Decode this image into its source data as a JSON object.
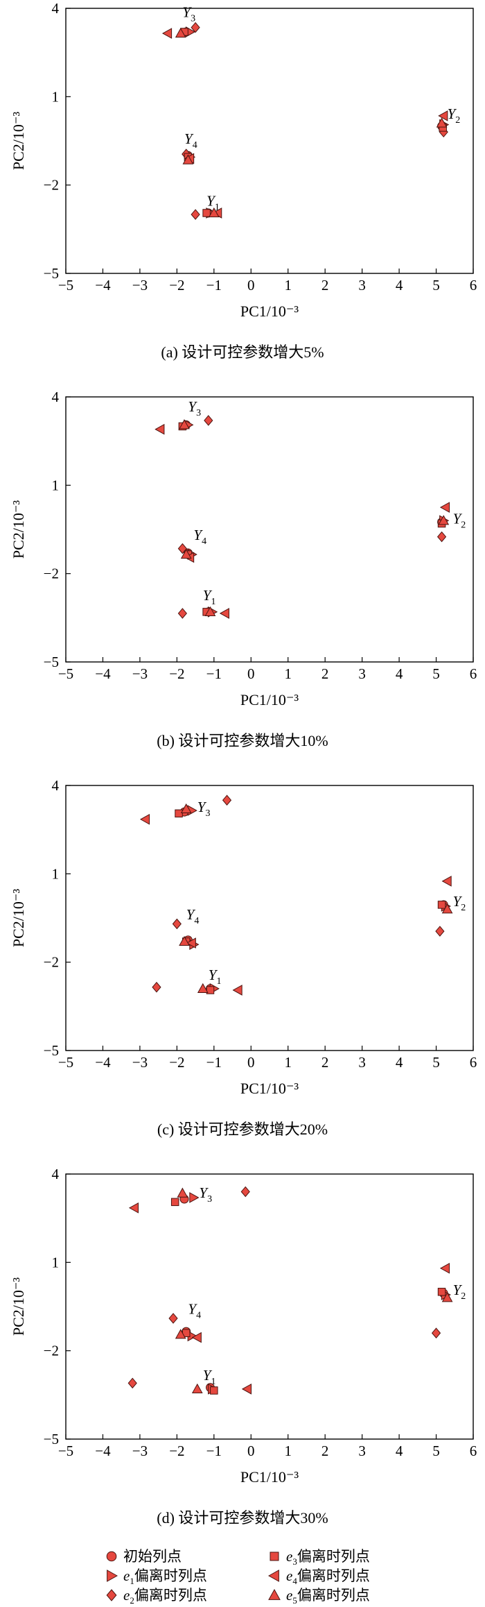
{
  "colors": {
    "marker_fill": "#e5483f",
    "marker_edge": "#4a1410",
    "axis": "#000000"
  },
  "series_markers": {
    "initial": "circle",
    "e1": "triangle-right",
    "e2": "diamond",
    "e3": "square",
    "e4": "triangle-left",
    "e5": "triangle-up"
  },
  "legend": [
    {
      "key": "initial",
      "base": "",
      "sub": "",
      "text": "初始列点"
    },
    {
      "key": "e3",
      "base": "e",
      "sub": "3",
      "text": "偏离时列点"
    },
    {
      "key": "e1",
      "base": "e",
      "sub": "1",
      "text": "偏离时列点"
    },
    {
      "key": "e4",
      "base": "e",
      "sub": "4",
      "text": "偏离时列点"
    },
    {
      "key": "e2",
      "base": "e",
      "sub": "2",
      "text": "偏离时列点"
    },
    {
      "key": "e5",
      "base": "e",
      "sub": "5",
      "text": "偏离时列点"
    }
  ],
  "chart_data": [
    {
      "type": "scatter",
      "caption": "(a) 设计可控参数增大5%",
      "xlabel": "PC1/10⁻³",
      "ylabel": "PC2/10⁻³",
      "xlim": [
        -5,
        6
      ],
      "ylim": [
        -5,
        4
      ],
      "xticks": [
        "−5",
        "−4",
        "−3",
        "−2",
        "−1",
        "0",
        "1",
        "2",
        "3",
        "4",
        "5",
        "6"
      ],
      "yticks": [
        "4",
        "1",
        "−2",
        "−5"
      ],
      "point_labels": [
        {
          "base": "Y",
          "sub": "1",
          "x": -1.2,
          "y": -2.7
        },
        {
          "base": "Y",
          "sub": "2",
          "x": 5.3,
          "y": 0.25
        },
        {
          "base": "Y",
          "sub": "3",
          "x": -1.85,
          "y": 3.7
        },
        {
          "base": "Y",
          "sub": "4",
          "x": -1.8,
          "y": -0.6
        }
      ],
      "series": [
        {
          "key": "initial",
          "points": [
            [
              -1.75,
              3.2
            ],
            [
              5.15,
              0.0
            ],
            [
              -1.7,
              -1.0
            ],
            [
              -1.15,
              -2.95
            ]
          ]
        },
        {
          "key": "e1",
          "points": [
            [
              -1.65,
              3.2
            ],
            [
              5.2,
              0.05
            ],
            [
              -1.65,
              -1.05
            ],
            [
              -1.1,
              -2.95
            ]
          ]
        },
        {
          "key": "e2",
          "points": [
            [
              -1.5,
              3.35
            ],
            [
              5.2,
              -0.2
            ],
            [
              -1.75,
              -0.95
            ],
            [
              -1.5,
              -3.0
            ]
          ]
        },
        {
          "key": "e3",
          "points": [
            [
              -1.8,
              3.2
            ],
            [
              5.18,
              -0.05
            ],
            [
              -1.7,
              -1.05
            ],
            [
              -1.2,
              -2.95
            ]
          ]
        },
        {
          "key": "e4",
          "points": [
            [
              -2.25,
              3.15
            ],
            [
              5.2,
              0.35
            ],
            [
              -1.65,
              -1.1
            ],
            [
              -0.9,
              -2.95
            ]
          ]
        },
        {
          "key": "e5",
          "points": [
            [
              -1.9,
              3.15
            ],
            [
              5.15,
              0.1
            ],
            [
              -1.7,
              -1.15
            ],
            [
              -1.0,
              -2.95
            ]
          ]
        }
      ]
    },
    {
      "type": "scatter",
      "caption": "(b) 设计可控参数增大10%",
      "xlabel": "PC1/10⁻³",
      "ylabel": "PC2/10⁻³",
      "xlim": [
        -5,
        6
      ],
      "ylim": [
        -5,
        4
      ],
      "xticks": [
        "−5",
        "−4",
        "−3",
        "−2",
        "−1",
        "0",
        "1",
        "2",
        "3",
        "4",
        "5",
        "6"
      ],
      "yticks": [
        "4",
        "1",
        "−2",
        "−5"
      ],
      "point_labels": [
        {
          "base": "Y",
          "sub": "1",
          "x": -1.3,
          "y": -2.9
        },
        {
          "base": "Y",
          "sub": "2",
          "x": 5.45,
          "y": -0.3
        },
        {
          "base": "Y",
          "sub": "3",
          "x": -1.7,
          "y": 3.5
        },
        {
          "base": "Y",
          "sub": "4",
          "x": -1.55,
          "y": -0.85
        }
      ],
      "series": [
        {
          "key": "initial",
          "points": [
            [
              -1.75,
              3.05
            ],
            [
              5.15,
              -0.25
            ],
            [
              -1.7,
              -1.3
            ],
            [
              -1.15,
              -3.3
            ]
          ]
        },
        {
          "key": "e1",
          "points": [
            [
              -1.7,
              3.05
            ],
            [
              5.2,
              -0.2
            ],
            [
              -1.6,
              -1.35
            ],
            [
              -1.05,
              -3.3
            ]
          ]
        },
        {
          "key": "e2",
          "points": [
            [
              -1.15,
              3.2
            ],
            [
              5.15,
              -0.75
            ],
            [
              -1.85,
              -1.15
            ],
            [
              -1.85,
              -3.35
            ]
          ]
        },
        {
          "key": "e3",
          "points": [
            [
              -1.85,
              3.0
            ],
            [
              5.15,
              -0.3
            ],
            [
              -1.7,
              -1.35
            ],
            [
              -1.2,
              -3.3
            ]
          ]
        },
        {
          "key": "e4",
          "points": [
            [
              -2.45,
              2.9
            ],
            [
              5.25,
              0.25
            ],
            [
              -1.65,
              -1.45
            ],
            [
              -0.7,
              -3.35
            ]
          ]
        },
        {
          "key": "e5",
          "points": [
            [
              -1.8,
              3.05
            ],
            [
              5.2,
              -0.2
            ],
            [
              -1.75,
              -1.35
            ],
            [
              -1.1,
              -3.3
            ]
          ]
        }
      ]
    },
    {
      "type": "scatter",
      "caption": "(c) 设计可控参数增大20%",
      "xlabel": "PC1/10⁻³",
      "ylabel": "PC2/10⁻³",
      "xlim": [
        -5,
        6
      ],
      "ylim": [
        -5,
        4
      ],
      "xticks": [
        "−5",
        "−4",
        "−3",
        "−2",
        "−1",
        "0",
        "1",
        "2",
        "3",
        "4",
        "5",
        "6"
      ],
      "yticks": [
        "4",
        "1",
        "−2",
        "−5"
      ],
      "point_labels": [
        {
          "base": "Y",
          "sub": "1",
          "x": -1.15,
          "y": -2.6
        },
        {
          "base": "Y",
          "sub": "2",
          "x": 5.45,
          "y": -0.1
        },
        {
          "base": "Y",
          "sub": "3",
          "x": -1.45,
          "y": 3.1
        },
        {
          "base": "Y",
          "sub": "4",
          "x": -1.75,
          "y": -0.55
        }
      ],
      "series": [
        {
          "key": "initial",
          "points": [
            [
              -1.8,
              3.1
            ],
            [
              5.2,
              -0.05
            ],
            [
              -1.7,
              -1.25
            ],
            [
              -1.1,
              -2.9
            ]
          ]
        },
        {
          "key": "e1",
          "points": [
            [
              -1.6,
              3.15
            ],
            [
              5.25,
              -0.1
            ],
            [
              -1.55,
              -1.4
            ],
            [
              -1.0,
              -2.9
            ]
          ]
        },
        {
          "key": "e2",
          "points": [
            [
              -0.65,
              3.5
            ],
            [
              5.1,
              -0.95
            ],
            [
              -2.0,
              -0.7
            ],
            [
              -2.55,
              -2.85
            ]
          ]
        },
        {
          "key": "e3",
          "points": [
            [
              -1.95,
              3.05
            ],
            [
              5.15,
              -0.05
            ],
            [
              -1.75,
              -1.3
            ],
            [
              -1.1,
              -2.95
            ]
          ]
        },
        {
          "key": "e4",
          "points": [
            [
              -2.85,
              2.85
            ],
            [
              5.3,
              0.75
            ],
            [
              -1.6,
              -1.35
            ],
            [
              -0.35,
              -2.95
            ]
          ]
        },
        {
          "key": "e5",
          "points": [
            [
              -1.75,
              3.2
            ],
            [
              5.3,
              -0.2
            ],
            [
              -1.8,
              -1.3
            ],
            [
              -1.3,
              -2.9
            ]
          ]
        }
      ]
    },
    {
      "type": "scatter",
      "caption": "(d) 设计可控参数增大30%",
      "xlabel": "PC1/10⁻³",
      "ylabel": "PC2/10⁻³",
      "xlim": [
        -5,
        6
      ],
      "ylim": [
        -5,
        4
      ],
      "xticks": [
        "−5",
        "−4",
        "−3",
        "−2",
        "−1",
        "0",
        "1",
        "2",
        "3",
        "4",
        "5",
        "6"
      ],
      "yticks": [
        "4",
        "1",
        "−2",
        "−5"
      ],
      "point_labels": [
        {
          "base": "Y",
          "sub": "1",
          "x": -1.3,
          "y": -3.0
        },
        {
          "base": "Y",
          "sub": "2",
          "x": 5.45,
          "y": -0.1
        },
        {
          "base": "Y",
          "sub": "3",
          "x": -1.4,
          "y": 3.2
        },
        {
          "base": "Y",
          "sub": "4",
          "x": -1.7,
          "y": -0.75
        }
      ],
      "series": [
        {
          "key": "initial",
          "points": [
            [
              -1.8,
              3.15
            ],
            [
              5.2,
              -0.05
            ],
            [
              -1.75,
              -1.35
            ],
            [
              -1.1,
              -3.25
            ]
          ]
        },
        {
          "key": "e1",
          "points": [
            [
              -1.55,
              3.2
            ],
            [
              5.25,
              -0.1
            ],
            [
              -1.6,
              -1.5
            ],
            [
              -1.05,
              -3.3
            ]
          ]
        },
        {
          "key": "e2",
          "points": [
            [
              -0.15,
              3.4
            ],
            [
              5.0,
              -1.4
            ],
            [
              -2.1,
              -0.9
            ],
            [
              -3.2,
              -3.1
            ]
          ]
        },
        {
          "key": "e3",
          "points": [
            [
              -2.05,
              3.05
            ],
            [
              5.15,
              0.0
            ],
            [
              -1.75,
              -1.4
            ],
            [
              -1.0,
              -3.35
            ]
          ]
        },
        {
          "key": "e4",
          "points": [
            [
              -3.15,
              2.85
            ],
            [
              5.25,
              0.8
            ],
            [
              -1.45,
              -1.55
            ],
            [
              -0.1,
              -3.3
            ]
          ]
        },
        {
          "key": "e5",
          "points": [
            [
              -1.85,
              3.35
            ],
            [
              5.3,
              -0.2
            ],
            [
              -1.9,
              -1.45
            ],
            [
              -1.45,
              -3.3
            ]
          ]
        }
      ]
    }
  ]
}
